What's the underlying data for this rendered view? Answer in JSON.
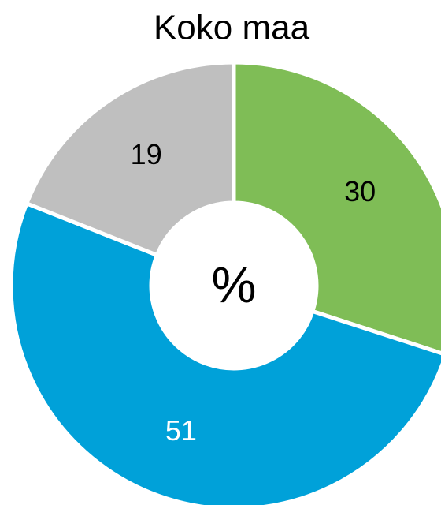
{
  "chart_data": {
    "type": "donut",
    "title": "Koko maa",
    "center_label": "%",
    "categories": [
      null,
      null,
      null
    ],
    "values": [
      30,
      51,
      19
    ],
    "colors": [
      "#7fbd56",
      "#00a1d9",
      "#bfbfbf"
    ],
    "label_colors": [
      "#000000",
      "#ffffff",
      "#000000"
    ]
  }
}
